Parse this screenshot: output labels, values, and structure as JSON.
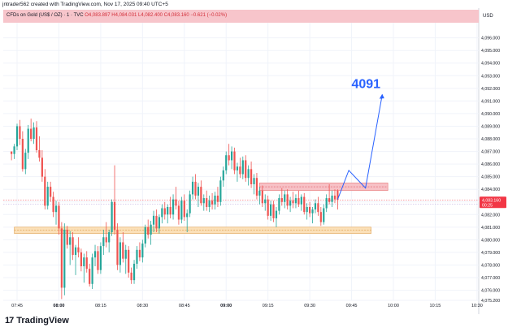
{
  "caption": "jntrader562 created with TradingView.com, Nov 17, 2025 09:40 UTC+5",
  "header": {
    "symbol_text": "CFDs on Gold (US$ / OZ) · 1 · TVC",
    "open": "O4,083.897",
    "high": "H4,084.031",
    "low": "L4,082.400",
    "close": "C4,083.160",
    "change": "−0.621 (−0.02%)"
  },
  "currency": "USD",
  "footer": {
    "logo_mark": "17",
    "logo_text": "TradingView"
  },
  "colors": {
    "up": "#26a69a",
    "down": "#ef5350",
    "projection": "#2962ff",
    "resistance_zone": "#f7c1c6",
    "support_zone": "#fbe0b8",
    "price_tag": "#f23645"
  },
  "chart_data": {
    "type": "candlestick",
    "title": "CFDs on Gold (US$ / OZ) · 1 · TVC",
    "timeframe": "1",
    "ylim": [
      4075.2,
      4097.2
    ],
    "y_ticks": [
      "4,075.200",
      "4,076.000",
      "4,077.000",
      "4,078.000",
      "4,079.000",
      "4,080.000",
      "4,081.000",
      "4,082.000",
      "4,083.000",
      "4,084.000",
      "4,085.000",
      "4,086.000",
      "4,087.000",
      "4,088.000",
      "4,089.000",
      "4,090.000",
      "4,091.000",
      "4,092.000",
      "4,093.000",
      "4,094.000",
      "4,095.000",
      "4,096.000"
    ],
    "x_ticks": [
      "07:45",
      "08:00",
      "08:15",
      "08:30",
      "08:45",
      "09:00",
      "09:15",
      "09:30",
      "09:45",
      "10:00",
      "10:15",
      "10:30"
    ],
    "current_price": {
      "value": 4083.16,
      "label": "4,083.160",
      "countdown": "00:25"
    },
    "zones": [
      {
        "name": "resistance",
        "from": 4083.9,
        "to": 4084.5,
        "start": "09:12",
        "end": "09:58"
      },
      {
        "name": "support",
        "from": 4080.5,
        "to": 4081.0,
        "start": "07:44",
        "end": "09:52"
      }
    ],
    "projection": {
      "label": "4091",
      "points": [
        [
          "09:40",
          4083.2
        ],
        [
          "09:44",
          4085.5
        ],
        [
          "09:50",
          4084.1
        ],
        [
          "09:56",
          4091.5
        ]
      ]
    },
    "candles": [
      [
        "07:43",
        4087.0,
        4087.0,
        4086.3,
        4086.8
      ],
      [
        "07:44",
        4086.8,
        4087.6,
        4086.4,
        4087.4
      ],
      [
        "07:45",
        4087.4,
        4089.2,
        4087.1,
        4089.0
      ],
      [
        "07:46",
        4089.0,
        4089.5,
        4087.5,
        4088.0
      ],
      [
        "07:47",
        4088.0,
        4088.6,
        4085.4,
        4085.6
      ],
      [
        "07:48",
        4085.6,
        4087.2,
        4085.2,
        4086.9
      ],
      [
        "07:49",
        4086.9,
        4089.1,
        4086.4,
        4088.8
      ],
      [
        "07:50",
        4088.8,
        4089.6,
        4087.8,
        4088.0
      ],
      [
        "07:51",
        4088.0,
        4089.3,
        4087.6,
        4088.9
      ],
      [
        "07:52",
        4088.9,
        4089.4,
        4086.9,
        4087.1
      ],
      [
        "07:53",
        4087.1,
        4088.2,
        4086.2,
        4086.5
      ],
      [
        "07:54",
        4086.5,
        4087.1,
        4084.6,
        4085.0
      ],
      [
        "07:55",
        4085.0,
        4085.6,
        4082.4,
        4082.7
      ],
      [
        "07:56",
        4082.7,
        4084.6,
        4082.4,
        4084.2
      ],
      [
        "07:57",
        4084.2,
        4084.6,
        4083.0,
        4083.4
      ],
      [
        "07:58",
        4083.4,
        4083.8,
        4081.8,
        4082.2
      ],
      [
        "07:59",
        4082.2,
        4083.1,
        4081.2,
        4082.7
      ],
      [
        "08:00",
        4082.7,
        4083.0,
        4080.4,
        4080.9
      ],
      [
        "08:01",
        4080.9,
        4081.4,
        4075.3,
        4076.2
      ],
      [
        "08:02",
        4076.2,
        4081.3,
        4075.6,
        4080.8
      ],
      [
        "08:03",
        4080.8,
        4081.1,
        4079.3,
        4079.6
      ],
      [
        "08:04",
        4079.6,
        4080.7,
        4078.0,
        4080.2
      ],
      [
        "08:05",
        4080.2,
        4080.6,
        4078.4,
        4078.8
      ],
      [
        "08:06",
        4078.8,
        4079.6,
        4077.2,
        4079.4
      ],
      [
        "08:07",
        4079.4,
        4080.2,
        4078.6,
        4079.0
      ],
      [
        "08:08",
        4079.0,
        4079.3,
        4077.5,
        4077.9
      ],
      [
        "08:09",
        4077.9,
        4078.9,
        4076.6,
        4078.6
      ],
      [
        "08:10",
        4078.6,
        4079.1,
        4077.4,
        4077.7
      ],
      [
        "08:11",
        4077.7,
        4078.1,
        4076.3,
        4076.5
      ],
      [
        "08:12",
        4076.5,
        4078.9,
        4076.1,
        4078.6
      ],
      [
        "08:13",
        4078.6,
        4079.6,
        4077.9,
        4079.1
      ],
      [
        "08:14",
        4079.1,
        4079.5,
        4077.3,
        4077.6
      ],
      [
        "08:15",
        4077.6,
        4079.8,
        4077.3,
        4079.5
      ],
      [
        "08:16",
        4079.5,
        4080.8,
        4078.8,
        4080.2
      ],
      [
        "08:17",
        4080.2,
        4081.4,
        4079.4,
        4079.8
      ],
      [
        "08:18",
        4079.8,
        4080.8,
        4079.0,
        4080.6
      ],
      [
        "08:19",
        4080.6,
        4083.2,
        4080.3,
        4083.0
      ],
      [
        "08:20",
        4083.0,
        4085.9,
        4080.4,
        4080.8
      ],
      [
        "08:21",
        4080.8,
        4081.3,
        4077.6,
        4078.0
      ],
      [
        "08:22",
        4078.0,
        4080.2,
        4077.4,
        4079.8
      ],
      [
        "08:23",
        4079.8,
        4080.6,
        4078.2,
        4078.5
      ],
      [
        "08:24",
        4078.5,
        4079.6,
        4077.3,
        4079.2
      ],
      [
        "08:25",
        4079.2,
        4079.5,
        4077.0,
        4077.4
      ],
      [
        "08:26",
        4077.4,
        4077.8,
        4076.5,
        4076.8
      ],
      [
        "08:27",
        4076.8,
        4078.4,
        4076.5,
        4078.1
      ],
      [
        "08:28",
        4078.1,
        4079.5,
        4077.7,
        4079.2
      ],
      [
        "08:29",
        4079.2,
        4079.8,
        4078.3,
        4078.6
      ],
      [
        "08:30",
        4078.6,
        4080.0,
        4078.2,
        4079.7
      ],
      [
        "08:31",
        4079.7,
        4081.2,
        4079.4,
        4081.0
      ],
      [
        "08:32",
        4081.0,
        4081.6,
        4080.1,
        4080.4
      ],
      [
        "08:33",
        4080.4,
        4081.5,
        4079.6,
        4081.2
      ],
      [
        "08:34",
        4081.2,
        4082.3,
        4080.6,
        4081.9
      ],
      [
        "08:35",
        4081.9,
        4082.4,
        4080.6,
        4080.9
      ],
      [
        "08:36",
        4080.9,
        4082.0,
        4080.5,
        4081.8
      ],
      [
        "08:37",
        4081.8,
        4082.8,
        4081.3,
        4082.5
      ],
      [
        "08:38",
        4082.5,
        4083.0,
        4081.6,
        4082.0
      ],
      [
        "08:39",
        4082.0,
        4082.8,
        4081.3,
        4082.6
      ],
      [
        "08:40",
        4082.6,
        4083.4,
        4081.7,
        4082.0
      ],
      [
        "08:41",
        4082.0,
        4083.6,
        4081.6,
        4083.2
      ],
      [
        "08:42",
        4083.2,
        4084.2,
        4082.4,
        4082.7
      ],
      [
        "08:43",
        4082.7,
        4083.1,
        4081.2,
        4081.6
      ],
      [
        "08:44",
        4081.6,
        4083.4,
        4081.3,
        4083.1
      ],
      [
        "08:45",
        4083.1,
        4083.6,
        4081.5,
        4081.8
      ],
      [
        "08:46",
        4081.8,
        4082.4,
        4080.6,
        4082.1
      ],
      [
        "08:47",
        4082.1,
        4083.9,
        4081.8,
        4083.6
      ],
      [
        "08:48",
        4083.6,
        4085.0,
        4083.2,
        4084.6
      ],
      [
        "08:49",
        4084.6,
        4085.2,
        4083.2,
        4083.5
      ],
      [
        "08:50",
        4083.5,
        4084.5,
        4082.6,
        4084.2
      ],
      [
        "08:51",
        4084.2,
        4084.7,
        4082.7,
        4082.9
      ],
      [
        "08:52",
        4082.9,
        4083.6,
        4082.3,
        4083.3
      ],
      [
        "08:53",
        4083.3,
        4083.9,
        4082.3,
        4082.6
      ],
      [
        "08:54",
        4082.6,
        4083.5,
        4082.2,
        4083.1
      ],
      [
        "08:55",
        4083.1,
        4083.7,
        4082.4,
        4082.8
      ],
      [
        "08:56",
        4082.8,
        4083.8,
        4082.4,
        4083.5
      ],
      [
        "08:57",
        4083.5,
        4084.2,
        4082.6,
        4083.0
      ],
      [
        "08:58",
        4083.0,
        4085.0,
        4082.7,
        4084.7
      ],
      [
        "08:59",
        4084.7,
        4085.8,
        4084.2,
        4085.5
      ],
      [
        "09:00",
        4085.5,
        4087.0,
        4085.2,
        4086.7
      ],
      [
        "09:01",
        4086.7,
        4087.6,
        4085.9,
        4086.3
      ],
      [
        "09:02",
        4086.3,
        4087.4,
        4085.6,
        4087.0
      ],
      [
        "09:03",
        4087.0,
        4087.3,
        4085.2,
        4085.5
      ],
      [
        "09:04",
        4085.5,
        4086.1,
        4084.6,
        4085.8
      ],
      [
        "09:05",
        4085.8,
        4086.5,
        4084.9,
        4085.2
      ],
      [
        "09:06",
        4085.2,
        4086.6,
        4084.8,
        4086.3
      ],
      [
        "09:07",
        4086.3,
        4086.7,
        4084.6,
        4084.9
      ],
      [
        "09:08",
        4084.9,
        4085.9,
        4084.3,
        4085.6
      ],
      [
        "09:09",
        4085.6,
        4086.2,
        4084.1,
        4084.4
      ],
      [
        "09:10",
        4084.4,
        4085.2,
        4083.6,
        4084.9
      ],
      [
        "09:11",
        4084.9,
        4085.3,
        4083.2,
        4083.5
      ],
      [
        "09:12",
        4083.5,
        4084.2,
        4082.8,
        4083.9
      ],
      [
        "09:13",
        4083.9,
        4084.3,
        4082.6,
        4082.9
      ],
      [
        "09:14",
        4082.9,
        4083.6,
        4082.3,
        4083.2
      ],
      [
        "09:15",
        4083.2,
        4083.5,
        4081.6,
        4081.9
      ],
      [
        "09:16",
        4081.9,
        4083.1,
        4081.5,
        4082.8
      ],
      [
        "09:17",
        4082.8,
        4083.1,
        4081.4,
        4081.7
      ],
      [
        "09:18",
        4081.7,
        4082.6,
        4081.0,
        4082.3
      ],
      [
        "09:19",
        4082.3,
        4083.6,
        4082.0,
        4083.3
      ],
      [
        "09:20",
        4083.3,
        4084.1,
        4082.7,
        4083.0
      ],
      [
        "09:21",
        4083.0,
        4083.9,
        4082.5,
        4083.6
      ],
      [
        "09:22",
        4083.6,
        4084.0,
        4082.4,
        4082.7
      ],
      [
        "09:23",
        4082.7,
        4083.4,
        4082.2,
        4083.1
      ],
      [
        "09:24",
        4083.1,
        4083.8,
        4082.5,
        4082.9
      ],
      [
        "09:25",
        4082.9,
        4083.6,
        4082.5,
        4083.3
      ],
      [
        "09:26",
        4083.3,
        4083.9,
        4082.6,
        4082.8
      ],
      [
        "09:27",
        4082.8,
        4083.6,
        4082.3,
        4083.4
      ],
      [
        "09:28",
        4083.4,
        4083.7,
        4082.0,
        4082.2
      ],
      [
        "09:29",
        4082.2,
        4082.9,
        4081.6,
        4082.6
      ],
      [
        "09:30",
        4082.6,
        4083.0,
        4081.8,
        4082.1
      ],
      [
        "09:31",
        4082.1,
        4082.6,
        4081.3,
        4082.4
      ],
      [
        "09:32",
        4082.4,
        4083.2,
        4082.1,
        4082.9
      ],
      [
        "09:33",
        4082.9,
        4083.4,
        4081.9,
        4082.2
      ],
      [
        "09:34",
        4082.2,
        4082.6,
        4081.1,
        4081.4
      ],
      [
        "09:35",
        4081.4,
        4082.8,
        4081.2,
        4082.5
      ],
      [
        "09:36",
        4082.5,
        4083.6,
        4082.2,
        4083.3
      ],
      [
        "09:37",
        4083.3,
        4084.4,
        4082.8,
        4083.0
      ],
      [
        "09:38",
        4083.0,
        4083.9,
        4082.6,
        4083.5
      ],
      [
        "09:39",
        4083.5,
        4084.0,
        4082.9,
        4083.2
      ],
      [
        "09:40",
        4083.9,
        4084.0,
        4082.4,
        4083.16
      ]
    ]
  }
}
